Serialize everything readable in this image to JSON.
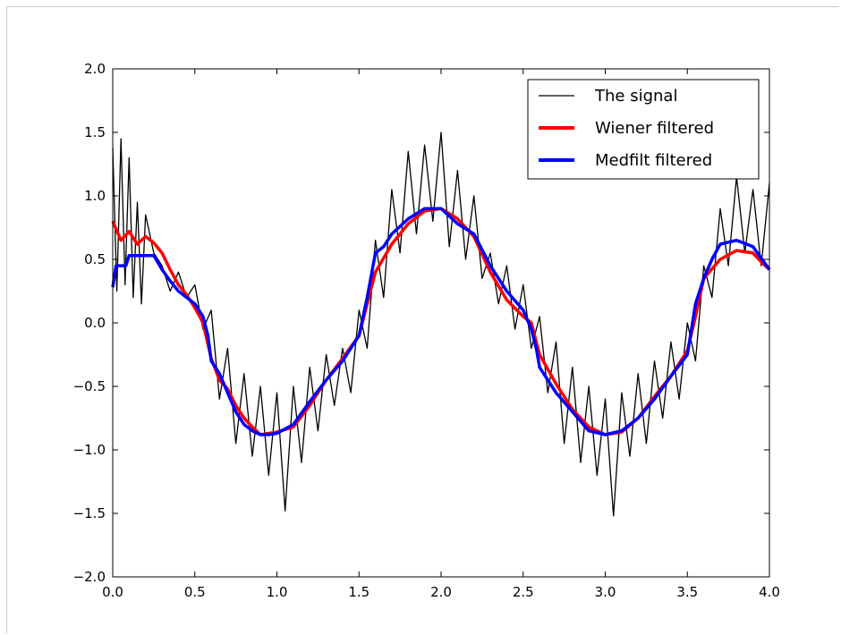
{
  "chart_data": {
    "type": "line",
    "x_range": [
      0.0,
      4.0
    ],
    "ylim": [
      -2.0,
      2.0
    ],
    "x_ticks": [
      "0.0",
      "0.5",
      "1.0",
      "1.5",
      "2.0",
      "2.5",
      "3.0",
      "3.5",
      "4.0"
    ],
    "y_ticks": [
      "2.0",
      "1.5",
      "1.0",
      "0.5",
      "0.0",
      "−0.5",
      "−1.0",
      "−1.5",
      "−2.0"
    ],
    "grid": false,
    "legend_position": "top-right",
    "series": [
      {
        "name": "The signal",
        "color": "#000000",
        "style": "thin line",
        "x": [
          0.0,
          0.025,
          0.05,
          0.075,
          0.1,
          0.125,
          0.15,
          0.175,
          0.2,
          0.25,
          0.3,
          0.35,
          0.4,
          0.45,
          0.5,
          0.55,
          0.6,
          0.65,
          0.7,
          0.75,
          0.8,
          0.85,
          0.9,
          0.95,
          1.0,
          1.05,
          1.1,
          1.15,
          1.2,
          1.25,
          1.3,
          1.35,
          1.4,
          1.45,
          1.5,
          1.55,
          1.6,
          1.65,
          1.7,
          1.75,
          1.8,
          1.85,
          1.9,
          1.95,
          2.0,
          2.05,
          2.1,
          2.15,
          2.2,
          2.25,
          2.3,
          2.35,
          2.4,
          2.45,
          2.5,
          2.55,
          2.6,
          2.65,
          2.7,
          2.75,
          2.8,
          2.85,
          2.9,
          2.95,
          3.0,
          3.05,
          3.1,
          3.15,
          3.2,
          3.25,
          3.3,
          3.35,
          3.4,
          3.45,
          3.5,
          3.55,
          3.6,
          3.65,
          3.7,
          3.75,
          3.8,
          3.85,
          3.9,
          3.95,
          4.0
        ],
        "values": [
          1.38,
          0.25,
          1.45,
          0.3,
          1.3,
          0.2,
          0.95,
          0.15,
          0.85,
          0.55,
          0.45,
          0.25,
          0.4,
          0.2,
          0.3,
          -0.05,
          0.1,
          -0.6,
          -0.2,
          -0.95,
          -0.4,
          -1.05,
          -0.5,
          -1.2,
          -0.55,
          -1.48,
          -0.5,
          -1.1,
          -0.35,
          -0.85,
          -0.25,
          -0.65,
          -0.2,
          -0.55,
          0.1,
          -0.2,
          0.65,
          0.2,
          1.05,
          0.55,
          1.35,
          0.7,
          1.4,
          0.8,
          1.5,
          0.6,
          1.2,
          0.5,
          1.0,
          0.35,
          0.55,
          0.15,
          0.45,
          -0.05,
          0.3,
          -0.2,
          0.05,
          -0.55,
          -0.15,
          -0.95,
          -0.35,
          -1.1,
          -0.5,
          -1.2,
          -0.6,
          -1.52,
          -0.55,
          -1.05,
          -0.4,
          -0.95,
          -0.3,
          -0.75,
          -0.15,
          -0.6,
          0.0,
          -0.3,
          0.45,
          0.2,
          0.9,
          0.45,
          1.15,
          0.55,
          1.05,
          0.45,
          1.1
        ]
      },
      {
        "name": "Wiener filtered",
        "color": "#ff0000",
        "style": "thick line",
        "x": [
          0.0,
          0.05,
          0.1,
          0.15,
          0.2,
          0.25,
          0.3,
          0.35,
          0.4,
          0.45,
          0.5,
          0.55,
          0.6,
          0.65,
          0.7,
          0.75,
          0.8,
          0.85,
          0.9,
          0.95,
          1.0,
          1.1,
          1.2,
          1.3,
          1.4,
          1.5,
          1.55,
          1.6,
          1.7,
          1.8,
          1.9,
          2.0,
          2.1,
          2.2,
          2.3,
          2.4,
          2.5,
          2.55,
          2.6,
          2.7,
          2.8,
          2.9,
          3.0,
          3.1,
          3.2,
          3.3,
          3.4,
          3.5,
          3.55,
          3.6,
          3.7,
          3.8,
          3.9,
          3.95,
          4.0
        ],
        "values": [
          0.8,
          0.65,
          0.72,
          0.62,
          0.68,
          0.63,
          0.55,
          0.42,
          0.3,
          0.22,
          0.12,
          0.0,
          -0.28,
          -0.45,
          -0.52,
          -0.65,
          -0.75,
          -0.82,
          -0.88,
          -0.87,
          -0.86,
          -0.82,
          -0.65,
          -0.45,
          -0.28,
          -0.1,
          0.15,
          0.4,
          0.62,
          0.78,
          0.88,
          0.9,
          0.82,
          0.68,
          0.4,
          0.18,
          0.05,
          0.0,
          -0.25,
          -0.48,
          -0.68,
          -0.82,
          -0.88,
          -0.86,
          -0.75,
          -0.58,
          -0.42,
          -0.22,
          0.05,
          0.35,
          0.5,
          0.57,
          0.55,
          0.48,
          0.42
        ]
      },
      {
        "name": "Medfilt filtered",
        "color": "#0000ff",
        "style": "thick line",
        "x": [
          0.0,
          0.02,
          0.04,
          0.08,
          0.1,
          0.15,
          0.2,
          0.25,
          0.3,
          0.35,
          0.4,
          0.45,
          0.5,
          0.55,
          0.58,
          0.6,
          0.65,
          0.7,
          0.75,
          0.8,
          0.85,
          0.9,
          0.95,
          1.0,
          1.1,
          1.2,
          1.3,
          1.4,
          1.5,
          1.55,
          1.6,
          1.65,
          1.7,
          1.8,
          1.9,
          2.0,
          2.1,
          2.2,
          2.3,
          2.4,
          2.5,
          2.55,
          2.58,
          2.6,
          2.65,
          2.7,
          2.8,
          2.9,
          3.0,
          3.1,
          3.2,
          3.3,
          3.4,
          3.5,
          3.55,
          3.6,
          3.65,
          3.7,
          3.8,
          3.9,
          4.0
        ],
        "values": [
          0.28,
          0.45,
          0.45,
          0.45,
          0.53,
          0.53,
          0.53,
          0.53,
          0.42,
          0.33,
          0.25,
          0.2,
          0.15,
          0.05,
          -0.1,
          -0.3,
          -0.4,
          -0.55,
          -0.7,
          -0.8,
          -0.85,
          -0.88,
          -0.88,
          -0.87,
          -0.8,
          -0.62,
          -0.45,
          -0.3,
          -0.1,
          0.2,
          0.55,
          0.6,
          0.7,
          0.82,
          0.9,
          0.9,
          0.78,
          0.7,
          0.45,
          0.25,
          0.1,
          -0.05,
          -0.2,
          -0.35,
          -0.45,
          -0.55,
          -0.7,
          -0.85,
          -0.88,
          -0.85,
          -0.75,
          -0.6,
          -0.42,
          -0.25,
          0.15,
          0.35,
          0.5,
          0.62,
          0.65,
          0.6,
          0.42
        ]
      }
    ]
  }
}
